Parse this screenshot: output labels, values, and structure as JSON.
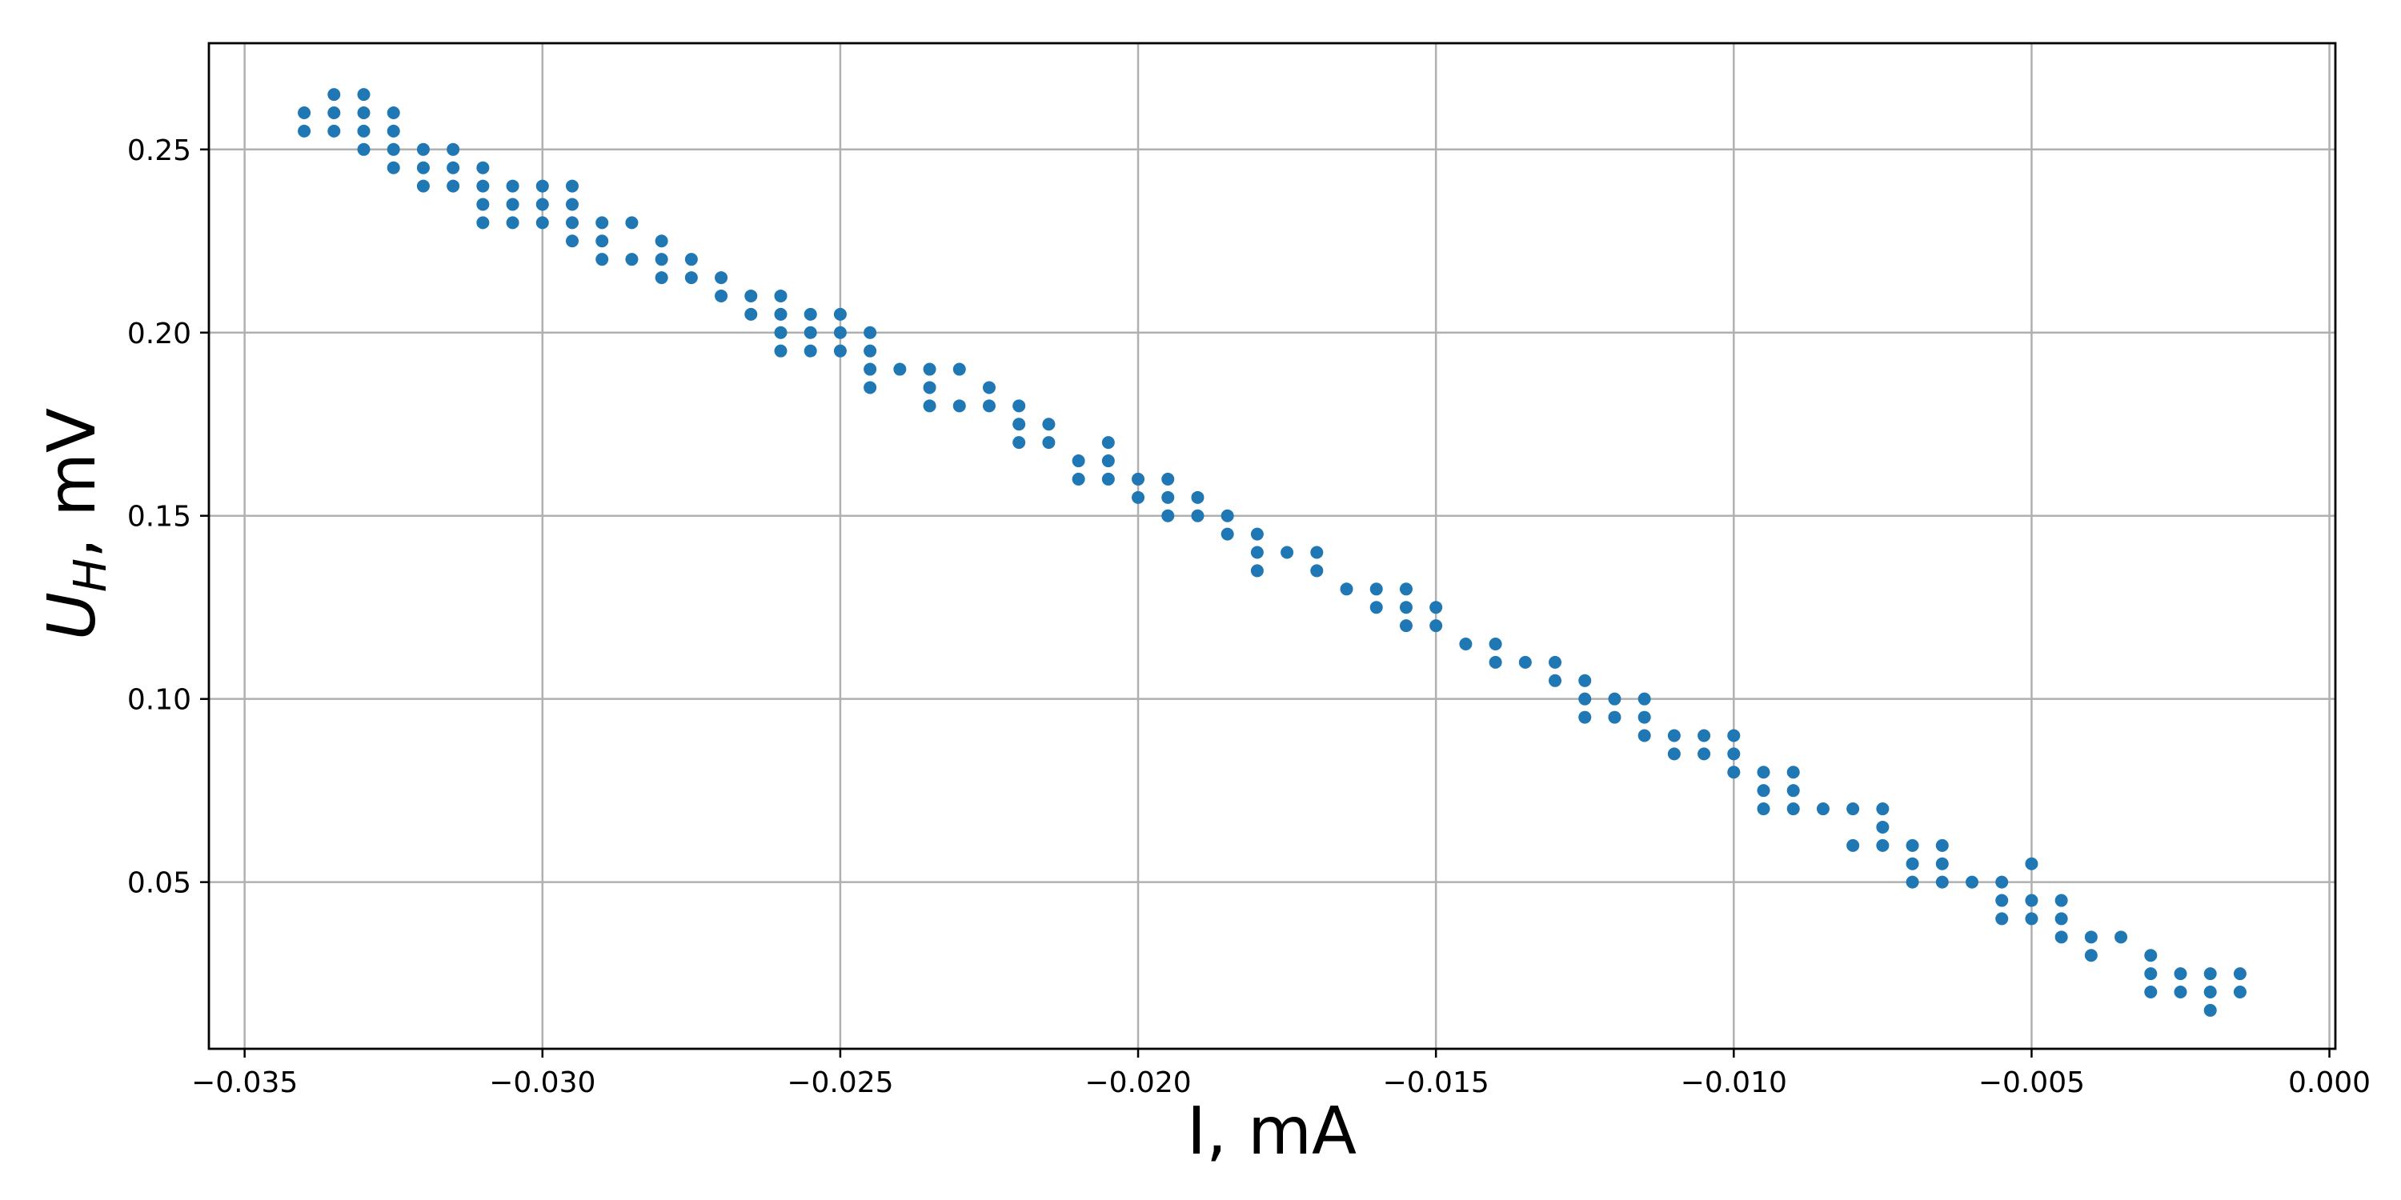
{
  "chart_data": {
    "type": "scatter",
    "xlabel": "I, mA",
    "ylabel": {
      "main": "U",
      "sub": "H",
      "tail": ", mV"
    },
    "xlim": [
      -0.0356,
      0.0001
    ],
    "ylim": [
      0.0045,
      0.279
    ],
    "grid": true,
    "marker_color": "#1f77b4",
    "xticks": [
      -0.035,
      -0.03,
      -0.025,
      -0.02,
      -0.015,
      -0.01,
      -0.005,
      0.0
    ],
    "xtick_labels": [
      "−0.035",
      "−0.030",
      "−0.025",
      "−0.020",
      "−0.015",
      "−0.010",
      "−0.005",
      "0.000"
    ],
    "yticks": [
      0.05,
      0.1,
      0.15,
      0.2,
      0.25
    ],
    "ytick_labels": [
      "0.05",
      "0.10",
      "0.15",
      "0.20",
      "0.25"
    ],
    "points": [
      [
        -0.034,
        0.26
      ],
      [
        -0.034,
        0.255
      ],
      [
        -0.0335,
        0.265
      ],
      [
        -0.0335,
        0.26
      ],
      [
        -0.0335,
        0.255
      ],
      [
        -0.033,
        0.265
      ],
      [
        -0.033,
        0.26
      ],
      [
        -0.033,
        0.255
      ],
      [
        -0.033,
        0.25
      ],
      [
        -0.0325,
        0.26
      ],
      [
        -0.0325,
        0.255
      ],
      [
        -0.0325,
        0.25
      ],
      [
        -0.0325,
        0.245
      ],
      [
        -0.032,
        0.25
      ],
      [
        -0.032,
        0.245
      ],
      [
        -0.032,
        0.24
      ],
      [
        -0.0315,
        0.25
      ],
      [
        -0.0315,
        0.245
      ],
      [
        -0.0315,
        0.24
      ],
      [
        -0.031,
        0.245
      ],
      [
        -0.031,
        0.24
      ],
      [
        -0.031,
        0.235
      ],
      [
        -0.031,
        0.23
      ],
      [
        -0.0305,
        0.24
      ],
      [
        -0.0305,
        0.235
      ],
      [
        -0.0305,
        0.23
      ],
      [
        -0.03,
        0.24
      ],
      [
        -0.03,
        0.235
      ],
      [
        -0.03,
        0.23
      ],
      [
        -0.0295,
        0.24
      ],
      [
        -0.0295,
        0.235
      ],
      [
        -0.0295,
        0.23
      ],
      [
        -0.0295,
        0.225
      ],
      [
        -0.029,
        0.23
      ],
      [
        -0.029,
        0.225
      ],
      [
        -0.029,
        0.22
      ],
      [
        -0.0285,
        0.23
      ],
      [
        -0.0285,
        0.22
      ],
      [
        -0.028,
        0.225
      ],
      [
        -0.028,
        0.22
      ],
      [
        -0.028,
        0.215
      ],
      [
        -0.0275,
        0.22
      ],
      [
        -0.0275,
        0.215
      ],
      [
        -0.027,
        0.215
      ],
      [
        -0.027,
        0.21
      ],
      [
        -0.0265,
        0.21
      ],
      [
        -0.0265,
        0.205
      ],
      [
        -0.026,
        0.21
      ],
      [
        -0.026,
        0.205
      ],
      [
        -0.026,
        0.2
      ],
      [
        -0.026,
        0.195
      ],
      [
        -0.0255,
        0.205
      ],
      [
        -0.0255,
        0.2
      ],
      [
        -0.0255,
        0.195
      ],
      [
        -0.025,
        0.205
      ],
      [
        -0.025,
        0.2
      ],
      [
        -0.025,
        0.195
      ],
      [
        -0.0245,
        0.2
      ],
      [
        -0.0245,
        0.195
      ],
      [
        -0.0245,
        0.19
      ],
      [
        -0.0245,
        0.185
      ],
      [
        -0.024,
        0.19
      ],
      [
        -0.0235,
        0.19
      ],
      [
        -0.0235,
        0.185
      ],
      [
        -0.0235,
        0.18
      ],
      [
        -0.023,
        0.19
      ],
      [
        -0.023,
        0.18
      ],
      [
        -0.0225,
        0.185
      ],
      [
        -0.0225,
        0.18
      ],
      [
        -0.022,
        0.18
      ],
      [
        -0.022,
        0.175
      ],
      [
        -0.022,
        0.17
      ],
      [
        -0.0215,
        0.175
      ],
      [
        -0.0215,
        0.17
      ],
      [
        -0.021,
        0.165
      ],
      [
        -0.021,
        0.16
      ],
      [
        -0.0205,
        0.17
      ],
      [
        -0.0205,
        0.165
      ],
      [
        -0.0205,
        0.16
      ],
      [
        -0.02,
        0.16
      ],
      [
        -0.02,
        0.155
      ],
      [
        -0.0195,
        0.16
      ],
      [
        -0.0195,
        0.155
      ],
      [
        -0.0195,
        0.15
      ],
      [
        -0.019,
        0.155
      ],
      [
        -0.019,
        0.15
      ],
      [
        -0.0185,
        0.15
      ],
      [
        -0.0185,
        0.145
      ],
      [
        -0.018,
        0.145
      ],
      [
        -0.018,
        0.14
      ],
      [
        -0.018,
        0.135
      ],
      [
        -0.0175,
        0.14
      ],
      [
        -0.017,
        0.14
      ],
      [
        -0.017,
        0.135
      ],
      [
        -0.0165,
        0.13
      ],
      [
        -0.016,
        0.13
      ],
      [
        -0.016,
        0.125
      ],
      [
        -0.0155,
        0.13
      ],
      [
        -0.0155,
        0.125
      ],
      [
        -0.0155,
        0.12
      ],
      [
        -0.015,
        0.125
      ],
      [
        -0.015,
        0.12
      ],
      [
        -0.0145,
        0.115
      ],
      [
        -0.014,
        0.115
      ],
      [
        -0.014,
        0.11
      ],
      [
        -0.0135,
        0.11
      ],
      [
        -0.013,
        0.11
      ],
      [
        -0.013,
        0.105
      ],
      [
        -0.0125,
        0.105
      ],
      [
        -0.0125,
        0.1
      ],
      [
        -0.0125,
        0.095
      ],
      [
        -0.012,
        0.1
      ],
      [
        -0.012,
        0.095
      ],
      [
        -0.0115,
        0.1
      ],
      [
        -0.0115,
        0.095
      ],
      [
        -0.0115,
        0.09
      ],
      [
        -0.011,
        0.09
      ],
      [
        -0.011,
        0.085
      ],
      [
        -0.0105,
        0.09
      ],
      [
        -0.0105,
        0.085
      ],
      [
        -0.01,
        0.09
      ],
      [
        -0.01,
        0.085
      ],
      [
        -0.01,
        0.08
      ],
      [
        -0.0095,
        0.08
      ],
      [
        -0.0095,
        0.075
      ],
      [
        -0.0095,
        0.07
      ],
      [
        -0.009,
        0.08
      ],
      [
        -0.009,
        0.075
      ],
      [
        -0.009,
        0.07
      ],
      [
        -0.0085,
        0.07
      ],
      [
        -0.008,
        0.07
      ],
      [
        -0.008,
        0.06
      ],
      [
        -0.0075,
        0.07
      ],
      [
        -0.0075,
        0.065
      ],
      [
        -0.0075,
        0.06
      ],
      [
        -0.007,
        0.06
      ],
      [
        -0.007,
        0.055
      ],
      [
        -0.007,
        0.05
      ],
      [
        -0.0065,
        0.06
      ],
      [
        -0.0065,
        0.055
      ],
      [
        -0.0065,
        0.05
      ],
      [
        -0.006,
        0.05
      ],
      [
        -0.0055,
        0.05
      ],
      [
        -0.0055,
        0.045
      ],
      [
        -0.0055,
        0.04
      ],
      [
        -0.005,
        0.055
      ],
      [
        -0.005,
        0.045
      ],
      [
        -0.005,
        0.04
      ],
      [
        -0.0045,
        0.045
      ],
      [
        -0.0045,
        0.04
      ],
      [
        -0.0045,
        0.035
      ],
      [
        -0.004,
        0.035
      ],
      [
        -0.004,
        0.03
      ],
      [
        -0.0035,
        0.035
      ],
      [
        -0.003,
        0.03
      ],
      [
        -0.003,
        0.025
      ],
      [
        -0.003,
        0.02
      ],
      [
        -0.0025,
        0.025
      ],
      [
        -0.0025,
        0.02
      ],
      [
        -0.002,
        0.025
      ],
      [
        -0.002,
        0.02
      ],
      [
        -0.002,
        0.015
      ],
      [
        -0.0015,
        0.025
      ],
      [
        -0.0015,
        0.02
      ]
    ]
  }
}
